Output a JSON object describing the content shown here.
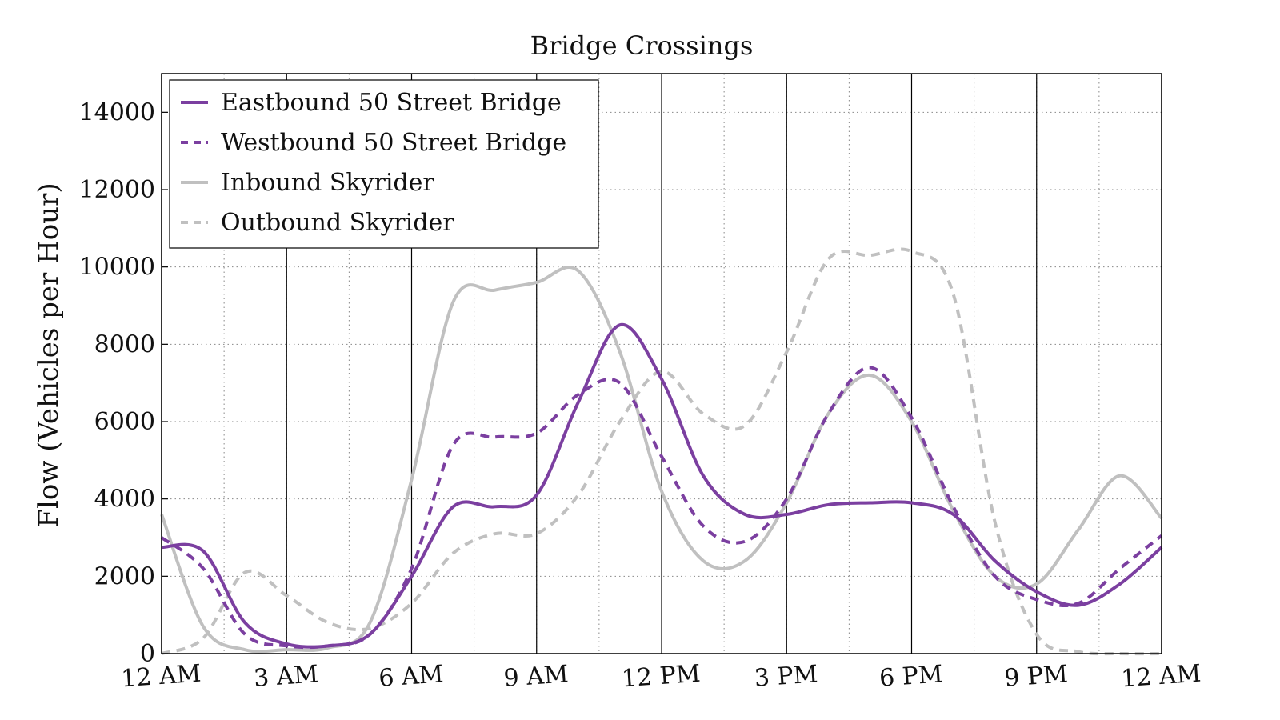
{
  "chart_data": {
    "type": "line",
    "title": "Bridge Crossings",
    "xlabel": "",
    "ylabel": "Flow (Vehicles per Hour)",
    "ylim": [
      0,
      15000
    ],
    "xlim": [
      0,
      24
    ],
    "yticks": [
      0,
      2000,
      4000,
      6000,
      8000,
      10000,
      12000,
      14000
    ],
    "ytick_labels": [
      "0",
      "2000",
      "4000",
      "6000",
      "8000",
      "10000",
      "12000",
      "14000"
    ],
    "xticks": [
      0,
      3,
      6,
      9,
      12,
      15,
      18,
      21,
      24
    ],
    "xtick_labels": [
      "12 AM",
      "3 AM",
      "6 AM",
      "9 AM",
      "12 PM",
      "3 PM",
      "6 PM",
      "9 PM",
      "12 AM"
    ],
    "x_hours": [
      0,
      1,
      2,
      3,
      4,
      5,
      6,
      7,
      8,
      9,
      10,
      11,
      12,
      13,
      14,
      15,
      16,
      17,
      18,
      19,
      20,
      21,
      22,
      23,
      24
    ],
    "grid": true,
    "legend_position": "top-left",
    "series": [
      {
        "name": "Eastbound 50 Street Bridge",
        "color": "#7b3fa0",
        "dash": "solid",
        "values": [
          2750,
          2650,
          800,
          250,
          200,
          500,
          2000,
          3800,
          3800,
          4100,
          6500,
          8500,
          7100,
          4600,
          3600,
          3600,
          3850,
          3900,
          3900,
          3600,
          2400,
          1600,
          1250,
          1800,
          2750
        ]
      },
      {
        "name": "Westbound 50 Street Bridge",
        "color": "#7b3fa0",
        "dash": "dashed",
        "values": [
          3000,
          2200,
          500,
          200,
          200,
          500,
          2200,
          5400,
          5600,
          5700,
          6700,
          7000,
          5100,
          3300,
          2900,
          4000,
          6200,
          7400,
          6100,
          3800,
          2000,
          1400,
          1300,
          2200,
          3050
        ]
      },
      {
        "name": "Inbound Skyrider",
        "color": "#c0c0c0",
        "dash": "solid",
        "values": [
          3600,
          700,
          100,
          100,
          150,
          800,
          4500,
          9100,
          9400,
          9600,
          9900,
          7800,
          4200,
          2400,
          2400,
          3900,
          6200,
          7200,
          6000,
          3700,
          2000,
          1800,
          3200,
          4600,
          3500
        ]
      },
      {
        "name": "Outbound Skyrider",
        "color": "#c0c0c0",
        "dash": "dashed",
        "values": [
          0,
          400,
          2100,
          1500,
          800,
          650,
          1300,
          2600,
          3100,
          3100,
          4100,
          6000,
          7300,
          6200,
          5900,
          7800,
          10200,
          10300,
          10400,
          9300,
          3400,
          500,
          50,
          0,
          0
        ]
      }
    ]
  }
}
